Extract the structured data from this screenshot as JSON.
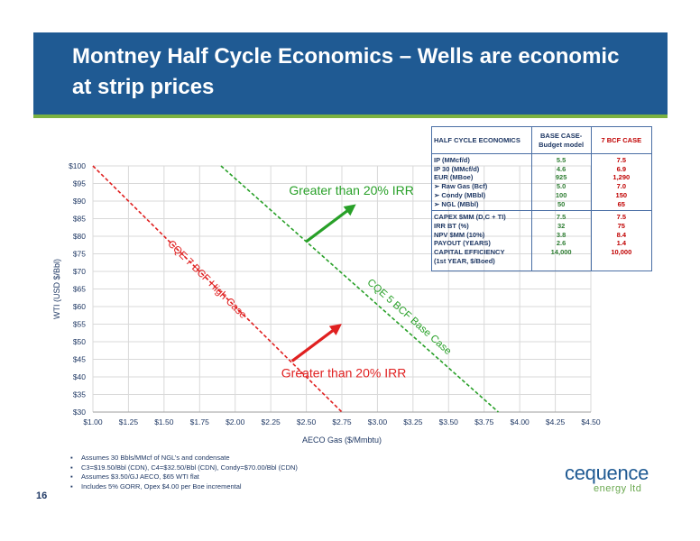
{
  "title": {
    "line1": "Montney Half Cycle Economics – Wells are economic",
    "line2": "at strip prices"
  },
  "colors": {
    "banner": "#1f5a93",
    "stripe": "#7bb241",
    "high_case": "#e02020",
    "base_case": "#28a028",
    "axis_text": "#1f3864"
  },
  "chart_data": {
    "type": "line",
    "xlabel": "AECO Gas ($/Mmbtu)",
    "ylabel": "WTI (USD $/Bbl)",
    "xlim": [
      1.0,
      4.5
    ],
    "ylim": [
      30,
      100
    ],
    "x_ticks": [
      1.0,
      1.25,
      1.5,
      1.75,
      2.0,
      2.25,
      2.5,
      2.75,
      3.0,
      3.25,
      3.5,
      3.75,
      4.0,
      4.25,
      4.5
    ],
    "x_tick_labels": [
      "$1.00",
      "$1.25",
      "$1.50",
      "$1.75",
      "$2.00",
      "$2.25",
      "$2.50",
      "$2.75",
      "$3.00",
      "$3.25",
      "$3.50",
      "$3.75",
      "$4.00",
      "$4.25",
      "$4.50"
    ],
    "y_ticks": [
      30,
      35,
      40,
      45,
      50,
      55,
      60,
      65,
      70,
      75,
      80,
      85,
      90,
      95,
      100
    ],
    "y_tick_labels": [
      "$30",
      "$35",
      "$40",
      "$45",
      "$50",
      "$55",
      "$60",
      "$65",
      "$70",
      "$75",
      "$80",
      "$85",
      "$90",
      "$95",
      "$100"
    ],
    "grid": true,
    "series": [
      {
        "name": "CQE 7 BCF High Case",
        "color": "#e02020",
        "style": "dashed",
        "x": [
          1.0,
          2.75
        ],
        "y": [
          100,
          30
        ]
      },
      {
        "name": "CQE 5 BCF Base Case",
        "color": "#28a028",
        "style": "dashed",
        "x": [
          1.9,
          3.85
        ],
        "y": [
          100,
          30
        ]
      }
    ],
    "annotations": [
      {
        "text": "Greater  than 20% IRR",
        "color": "#28a028",
        "arrow_from": [
          2.5,
          78.5
        ],
        "arrow_to": [
          2.83,
          88.5
        ]
      },
      {
        "text": "Greater than 20% IRR",
        "color": "#e02020",
        "arrow_from": [
          2.4,
          44.5
        ],
        "arrow_to": [
          2.73,
          54.5
        ]
      }
    ]
  },
  "table": {
    "headers": [
      "HALF CYCLE ECONOMICS",
      "BASE CASE-",
      "Budget model",
      "7 BCF CASE"
    ],
    "section1": {
      "labels": [
        "IP (MMcf/d)",
        "IP 30 (MMcf/d)",
        "EUR (MBoe)",
        "Raw Gas (Bcf)",
        "Condy (MBbl)",
        "NGL (MBbl)"
      ],
      "base": [
        "5.5",
        "4.6",
        "925",
        "5.0",
        "100",
        "50"
      ],
      "high": [
        "7.5",
        "6.9",
        "1,290",
        "7.0",
        "150",
        "65"
      ]
    },
    "section2": {
      "labels": [
        "CAPEX $MM (D,C + TI)",
        "IRR BT (%)",
        "NPV $MM (10%)",
        "PAYOUT (YEARS)",
        "CAPITAL EFFICIENCY",
        "(1st YEAR, $/Boed)"
      ],
      "base": [
        "7.5",
        "32",
        "3.8",
        "2.6",
        "14,000",
        ""
      ],
      "high": [
        "7.5",
        "75",
        "8.4",
        "1.4",
        "10,000",
        ""
      ]
    },
    "bullet_glyph": "➢"
  },
  "notes": [
    "Assumes 30 Bbls/MMcf of NGL’s and condensate",
    "C3=$19.50/Bbl (CDN), C4=$32.50/Bbl (CDN), Condy=$70.00/Bbl (CDN)",
    "Assumes $3.50/GJ AECO, $65 WTI flat",
    "Includes 5% GORR, Opex $4.00 per Boe incremental"
  ],
  "page_number": "16",
  "logo": {
    "main": "cequence",
    "sub": "energy ltd"
  }
}
